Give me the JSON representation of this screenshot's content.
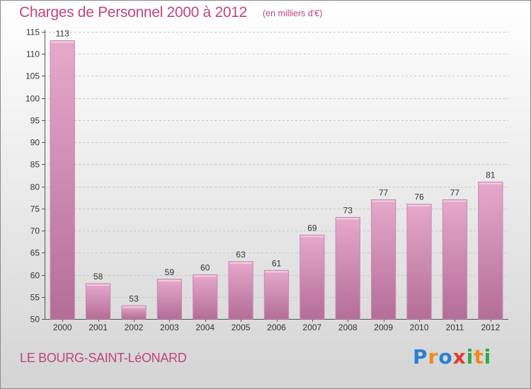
{
  "header": {
    "title": "Charges de Personnel 2000 à 2012",
    "subtitle": "(en milliers d'€)"
  },
  "footer": {
    "place": "LE BOURG-SAINT-LéONARD",
    "logo_text": "Proxiti",
    "logo_letters": [
      {
        "ch": "P",
        "color": "#2b7fd4"
      },
      {
        "ch": "r",
        "color": "#f08a1c"
      },
      {
        "ch": "o",
        "color": "#2b7fd4"
      },
      {
        "ch": "x",
        "color": "#e23a2b"
      },
      {
        "ch": "i",
        "color": "#2fa84f"
      },
      {
        "ch": "t",
        "color": "#f08a1c"
      },
      {
        "ch": "i",
        "color": "#2fa84f"
      }
    ]
  },
  "chart_data": {
    "type": "bar",
    "categories": [
      "2000",
      "2001",
      "2002",
      "2003",
      "2004",
      "2005",
      "2006",
      "2007",
      "2008",
      "2009",
      "2010",
      "2011",
      "2012"
    ],
    "values": [
      113,
      58,
      53,
      59,
      60,
      63,
      61,
      69,
      73,
      77,
      76,
      77,
      81
    ],
    "data_labels": [
      "113",
      "58",
      "53",
      "59",
      "60",
      "63",
      "61",
      "69",
      "73",
      "77",
      "76",
      "77",
      "81"
    ],
    "title": "Charges de Personnel 2000 à 2012",
    "xlabel": "",
    "ylabel": "",
    "ylim": [
      50,
      115
    ],
    "yticks": [
      50,
      55,
      60,
      65,
      70,
      75,
      80,
      85,
      90,
      95,
      100,
      105,
      110,
      115
    ],
    "grid": true,
    "bar_color": "#d58db5"
  }
}
